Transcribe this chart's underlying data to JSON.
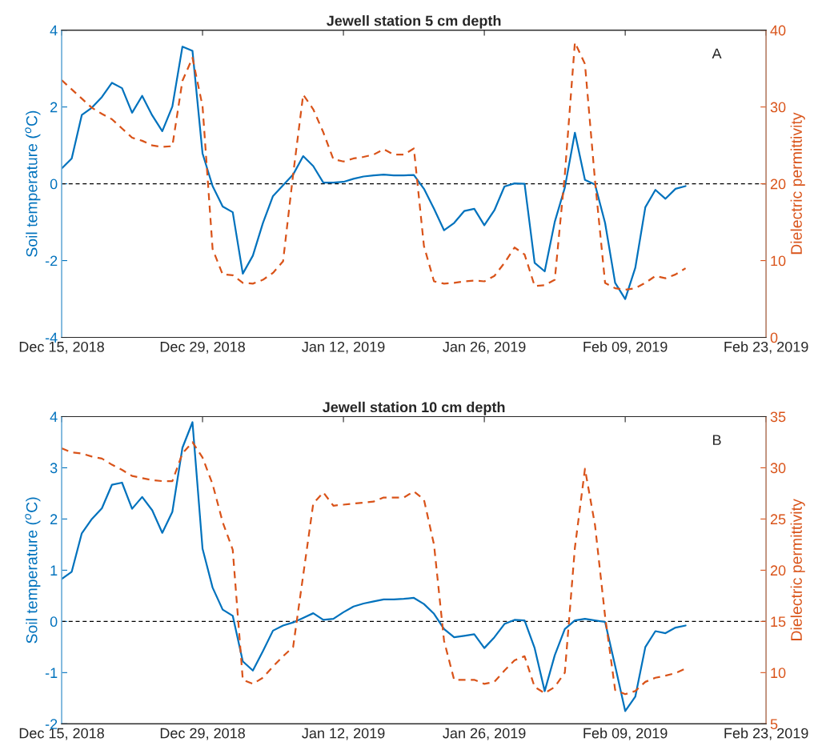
{
  "chart_data": [
    {
      "type": "line",
      "title": "Jewell station 5 cm depth",
      "ylabel": "Soil temperature ($^{o}$C)",
      "y2label": "Dielectric permittivity",
      "annotations": [
        "A"
      ],
      "x": [
        "2018-12-15",
        "2018-12-16",
        "2018-12-17",
        "2018-12-18",
        "2018-12-19",
        "2018-12-20",
        "2018-12-21",
        "2018-12-22",
        "2018-12-23",
        "2018-12-24",
        "2018-12-25",
        "2018-12-26",
        "2018-12-27",
        "2018-12-28",
        "2018-12-29",
        "2018-12-30",
        "2018-12-31",
        "2019-01-01",
        "2019-01-02",
        "2019-01-03",
        "2019-01-04",
        "2019-01-05",
        "2019-01-06",
        "2019-01-07",
        "2019-01-08",
        "2019-01-09",
        "2019-01-10",
        "2019-01-11",
        "2019-01-12",
        "2019-01-13",
        "2019-01-14",
        "2019-01-15",
        "2019-01-16",
        "2019-01-17",
        "2019-01-18",
        "2019-01-19",
        "2019-01-20",
        "2019-01-21",
        "2019-01-22",
        "2019-01-23",
        "2019-01-24",
        "2019-01-25",
        "2019-01-26",
        "2019-01-27",
        "2019-01-28",
        "2019-01-29",
        "2019-01-30",
        "2019-01-31",
        "2019-02-01",
        "2019-02-02",
        "2019-02-03",
        "2019-02-04",
        "2019-02-05",
        "2019-02-06",
        "2019-02-07",
        "2019-02-08",
        "2019-02-09",
        "2019-02-10",
        "2019-02-11",
        "2019-02-12",
        "2019-02-13",
        "2019-02-14",
        "2019-02-15"
      ],
      "series": [
        {
          "color": "#0072bd",
          "line_style": "solid",
          "values": [
            0.4,
            0.66,
            1.79,
            1.98,
            2.26,
            2.63,
            2.49,
            1.85,
            2.29,
            1.78,
            1.37,
            2.01,
            3.57,
            3.46,
            0.79,
            -0.06,
            -0.59,
            -0.74,
            -2.34,
            -1.87,
            -1.02,
            -0.32,
            -0.04,
            0.24,
            0.72,
            0.46,
            0.03,
            0.03,
            0.05,
            0.13,
            0.19,
            0.22,
            0.24,
            0.22,
            0.22,
            0.23,
            -0.13,
            -0.65,
            -1.21,
            -1.02,
            -0.71,
            -0.65,
            -1.08,
            -0.69,
            -0.07,
            0.01,
            0.0,
            -2.06,
            -2.28,
            -0.99,
            -0.1,
            1.33,
            0.1,
            -0.02,
            -1.02,
            -2.58,
            -3.0,
            -2.19,
            -0.61,
            -0.16,
            -0.39,
            -0.13,
            -0.06
          ]
        },
        {
          "color": "#d95319",
          "line_style": "dashed",
          "axis": "y2",
          "values": [
            33.5,
            32.3,
            31.1,
            29.9,
            29.1,
            28.4,
            27.2,
            26.0,
            25.6,
            25.0,
            24.8,
            24.9,
            33.4,
            36.4,
            30.1,
            11.5,
            8.2,
            8.1,
            7.1,
            7.0,
            7.5,
            8.4,
            9.9,
            21.2,
            31.6,
            29.7,
            26.7,
            23.2,
            22.9,
            23.3,
            23.5,
            23.8,
            24.5,
            23.8,
            23.8,
            24.6,
            11.9,
            7.3,
            7.0,
            7.1,
            7.3,
            7.4,
            7.3,
            8.0,
            9.7,
            11.7,
            10.8,
            6.7,
            6.8,
            7.5,
            21.2,
            38.4,
            35.6,
            20.4,
            7.1,
            6.4,
            6.2,
            6.4,
            7.1,
            8.0,
            7.7,
            8.2,
            9.0
          ]
        }
      ],
      "xlim": [
        "2018-12-15",
        "2019-02-23"
      ],
      "xticks": [
        {
          "value": "2018-12-15",
          "label": "Dec 15, 2018"
        },
        {
          "value": "2018-12-29",
          "label": "Dec 29, 2018"
        },
        {
          "value": "2019-01-12",
          "label": "Jan 12, 2019"
        },
        {
          "value": "2019-01-26",
          "label": "Jan 26, 2019"
        },
        {
          "value": "2019-02-09",
          "label": "Feb 09, 2019"
        },
        {
          "value": "2019-02-23",
          "label": "Feb 23, 2019"
        }
      ],
      "ylim": [
        -4,
        4
      ],
      "yticks": [
        -4,
        -2,
        0,
        2,
        4
      ],
      "y2lim": [
        0,
        40
      ],
      "y2ticks": [
        0,
        10,
        20,
        30,
        40
      ],
      "ref_lines": [
        {
          "axis": "y",
          "value": 0,
          "color": "#000000",
          "line_style": "dashed"
        }
      ],
      "grid": false,
      "legend": false,
      "marker": "none"
    },
    {
      "type": "line",
      "title": "Jewell station 10 cm depth",
      "ylabel": "Soil temperature ($^{o}$C)",
      "y2label": "Dielectric permittivity",
      "annotations": [
        "B"
      ],
      "x": [
        "2018-12-15",
        "2018-12-16",
        "2018-12-17",
        "2018-12-18",
        "2018-12-19",
        "2018-12-20",
        "2018-12-21",
        "2018-12-22",
        "2018-12-23",
        "2018-12-24",
        "2018-12-25",
        "2018-12-26",
        "2018-12-27",
        "2018-12-28",
        "2018-12-29",
        "2018-12-30",
        "2018-12-31",
        "2019-01-01",
        "2019-01-02",
        "2019-01-03",
        "2019-01-04",
        "2019-01-05",
        "2019-01-06",
        "2019-01-07",
        "2019-01-08",
        "2019-01-09",
        "2019-01-10",
        "2019-01-11",
        "2019-01-12",
        "2019-01-13",
        "2019-01-14",
        "2019-01-15",
        "2019-01-16",
        "2019-01-17",
        "2019-01-18",
        "2019-01-19",
        "2019-01-20",
        "2019-01-21",
        "2019-01-22",
        "2019-01-23",
        "2019-01-24",
        "2019-01-25",
        "2019-01-26",
        "2019-01-27",
        "2019-01-28",
        "2019-01-29",
        "2019-01-30",
        "2019-01-31",
        "2019-02-01",
        "2019-02-02",
        "2019-02-03",
        "2019-02-04",
        "2019-02-05",
        "2019-02-06",
        "2019-02-07",
        "2019-02-08",
        "2019-02-09",
        "2019-02-10",
        "2019-02-11",
        "2019-02-12",
        "2019-02-13",
        "2019-02-14",
        "2019-02-15"
      ],
      "series": [
        {
          "color": "#0072bd",
          "line_style": "solid",
          "values": [
            0.83,
            0.97,
            1.72,
            2.0,
            2.21,
            2.67,
            2.71,
            2.2,
            2.43,
            2.17,
            1.73,
            2.14,
            3.39,
            3.89,
            1.42,
            0.66,
            0.23,
            0.11,
            -0.78,
            -0.96,
            -0.58,
            -0.18,
            -0.08,
            -0.02,
            0.07,
            0.16,
            0.03,
            0.05,
            0.18,
            0.29,
            0.35,
            0.39,
            0.43,
            0.43,
            0.44,
            0.46,
            0.34,
            0.15,
            -0.15,
            -0.31,
            -0.28,
            -0.25,
            -0.52,
            -0.31,
            -0.05,
            0.03,
            0.02,
            -0.52,
            -1.36,
            -0.66,
            -0.15,
            0.02,
            0.05,
            0.02,
            -0.01,
            -0.87,
            -1.75,
            -1.47,
            -0.5,
            -0.19,
            -0.23,
            -0.12,
            -0.08
          ]
        },
        {
          "color": "#d95319",
          "line_style": "dashed",
          "axis": "y2",
          "values": [
            31.9,
            31.5,
            31.4,
            31.1,
            30.9,
            30.3,
            29.8,
            29.2,
            29.0,
            28.8,
            28.7,
            28.7,
            31.4,
            32.5,
            31.0,
            28.4,
            24.7,
            22.0,
            9.3,
            8.9,
            9.5,
            10.6,
            11.6,
            12.5,
            19.5,
            26.5,
            27.6,
            26.3,
            26.4,
            26.5,
            26.6,
            26.7,
            27.1,
            27.1,
            27.1,
            27.7,
            26.9,
            22.5,
            13.1,
            9.3,
            9.3,
            9.3,
            8.9,
            9.1,
            10.2,
            11.2,
            11.6,
            8.6,
            8.0,
            8.6,
            10.0,
            22.2,
            29.9,
            24.4,
            15.5,
            8.3,
            7.9,
            8.2,
            9.1,
            9.5,
            9.7,
            9.95,
            10.4
          ]
        }
      ],
      "xlim": [
        "2018-12-15",
        "2019-02-23"
      ],
      "xticks": [
        {
          "value": "2018-12-15",
          "label": "Dec 15, 2018"
        },
        {
          "value": "2018-12-29",
          "label": "Dec 29, 2018"
        },
        {
          "value": "2019-01-12",
          "label": "Jan 12, 2019"
        },
        {
          "value": "2019-01-26",
          "label": "Jan 26, 2019"
        },
        {
          "value": "2019-02-09",
          "label": "Feb 09, 2019"
        },
        {
          "value": "2019-02-23",
          "label": "Feb 23, 2019"
        }
      ],
      "ylim": [
        -2,
        4
      ],
      "yticks": [
        -2,
        -1,
        0,
        1,
        2,
        3,
        4
      ],
      "y2lim": [
        5,
        35
      ],
      "y2ticks": [
        5,
        10,
        15,
        20,
        25,
        30,
        35
      ],
      "ref_lines": [
        {
          "axis": "y",
          "value": 0,
          "color": "#000000",
          "line_style": "dashed"
        }
      ],
      "grid": false,
      "legend": false,
      "marker": "none"
    }
  ]
}
